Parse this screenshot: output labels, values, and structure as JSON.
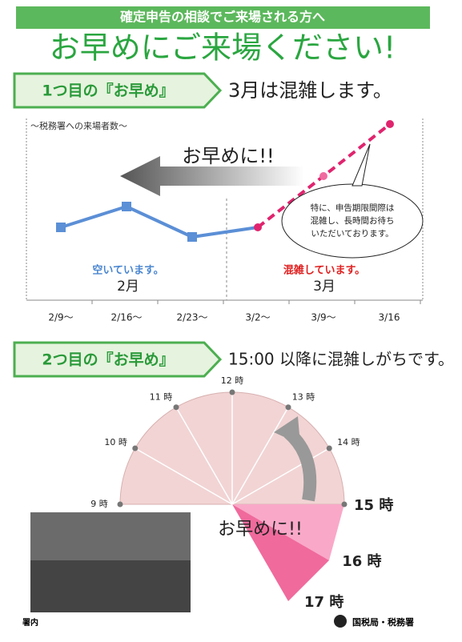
{
  "header": {
    "banner": "確定申告の相談でご来場される方へ",
    "title": "お早めにご来場ください!"
  },
  "section1": {
    "tag": "1つ目の『お早め』",
    "headline": "3月は混雑します。",
    "caption": "～税務署への来場者数～",
    "arrow_text": "お早めに!!",
    "bubble": [
      "特に、申告期限間際は",
      "混雑し、長時間お待ち",
      "いただいております。"
    ],
    "left_status": "空いています。",
    "left_month": "2月",
    "right_status": "混雑しています。",
    "right_month": "3月",
    "dates": [
      "2/9～",
      "2/16～",
      "2/23～",
      "3/2～",
      "3/9～",
      "3/16"
    ]
  },
  "section2": {
    "tag": "2つ目の『お早め』",
    "headline": "15:00 以降に混雑しがちです。",
    "arrow_text": "お早めに!!",
    "hours": [
      "9 時",
      "10 時",
      "11 時",
      "12 時",
      "13 時",
      "14 時",
      "15 時",
      "16 時",
      "17 時"
    ]
  },
  "footer": {
    "left": "署内",
    "right": "国税局・税務署"
  }
}
